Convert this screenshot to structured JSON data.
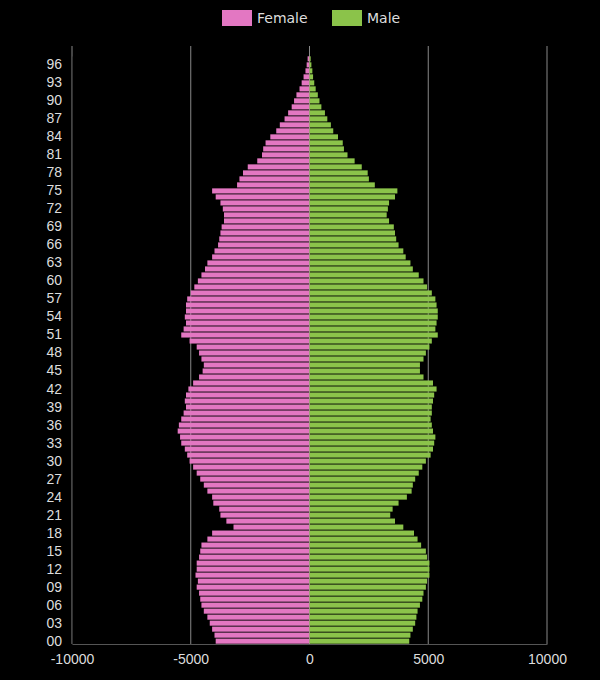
{
  "chart_data": {
    "type": "bar",
    "orientation": "horizontal",
    "grid": true,
    "legend": "top",
    "categories": [
      "00",
      null,
      null,
      "03",
      null,
      null,
      "06",
      null,
      null,
      "09",
      null,
      null,
      "12",
      null,
      null,
      "15",
      null,
      null,
      "18",
      null,
      null,
      "21",
      null,
      null,
      "24",
      null,
      null,
      "27",
      null,
      null,
      "30",
      null,
      null,
      "33",
      null,
      null,
      "36",
      null,
      null,
      "39",
      null,
      null,
      "42",
      null,
      null,
      "45",
      null,
      null,
      "48",
      null,
      null,
      "51",
      null,
      null,
      "54",
      null,
      null,
      "57",
      null,
      null,
      "60",
      null,
      null,
      "63",
      null,
      null,
      "66",
      null,
      null,
      "69",
      null,
      null,
      "72",
      null,
      null,
      "75",
      null,
      null,
      "78",
      null,
      null,
      "81",
      null,
      null,
      "84",
      null,
      null,
      "87",
      null,
      null,
      "90",
      null,
      null,
      "93",
      null,
      null,
      "96",
      null
    ],
    "xlim": [
      -10000,
      10000
    ],
    "xticks": [
      -10000,
      -5000,
      0,
      5000,
      10000
    ],
    "series": [
      {
        "name": "Female",
        "color": "#e377c2",
        "values": [
          -3950,
          -4000,
          -4100,
          -4200,
          -4300,
          -4450,
          -4550,
          -4600,
          -4650,
          -4750,
          -4700,
          -4800,
          -4750,
          -4750,
          -4650,
          -4600,
          -4550,
          -4300,
          -4100,
          -3200,
          -3500,
          -3750,
          -3800,
          -4050,
          -4100,
          -4300,
          -4450,
          -4600,
          -4750,
          -4900,
          -5050,
          -5150,
          -5250,
          -5400,
          -5450,
          -5550,
          -5500,
          -5400,
          -5300,
          -5200,
          -5250,
          -5200,
          -5100,
          -4900,
          -4650,
          -4500,
          -4450,
          -4550,
          -4650,
          -4750,
          -5050,
          -5400,
          -5300,
          -5200,
          -5250,
          -5200,
          -5200,
          -5150,
          -5000,
          -4850,
          -4700,
          -4550,
          -4400,
          -4300,
          -4100,
          -4000,
          -3850,
          -3800,
          -3750,
          -3700,
          -3600,
          -3600,
          -3650,
          -3750,
          -3950,
          -4100,
          -3050,
          -2950,
          -2800,
          -2600,
          -2200,
          -2000,
          -1950,
          -1850,
          -1650,
          -1400,
          -1250,
          -1050,
          -900,
          -750,
          -650,
          -550,
          -420,
          -330,
          -250,
          -170,
          -120,
          -80
        ]
      },
      {
        "name": "Male",
        "color": "#8bc34a",
        "values": [
          4200,
          4250,
          4350,
          4450,
          4500,
          4550,
          4650,
          4750,
          4800,
          4900,
          4950,
          5050,
          5050,
          5050,
          4950,
          4900,
          4700,
          4550,
          4400,
          3950,
          3600,
          3400,
          3500,
          3750,
          4100,
          4300,
          4350,
          4450,
          4600,
          4750,
          4900,
          5100,
          5200,
          5250,
          5300,
          5200,
          5150,
          5100,
          5150,
          5150,
          5200,
          5250,
          5350,
          5200,
          4800,
          4650,
          4650,
          4800,
          4900,
          5050,
          5150,
          5400,
          5300,
          5350,
          5400,
          5400,
          5350,
          5300,
          5150,
          4950,
          4800,
          4600,
          4350,
          4250,
          4050,
          3950,
          3750,
          3650,
          3600,
          3550,
          3350,
          3250,
          3300,
          3350,
          3600,
          3700,
          2750,
          2500,
          2450,
          2200,
          1900,
          1600,
          1450,
          1400,
          1200,
          1000,
          900,
          750,
          650,
          500,
          420,
          350,
          260,
          200,
          150,
          120,
          80,
          50
        ]
      }
    ]
  }
}
